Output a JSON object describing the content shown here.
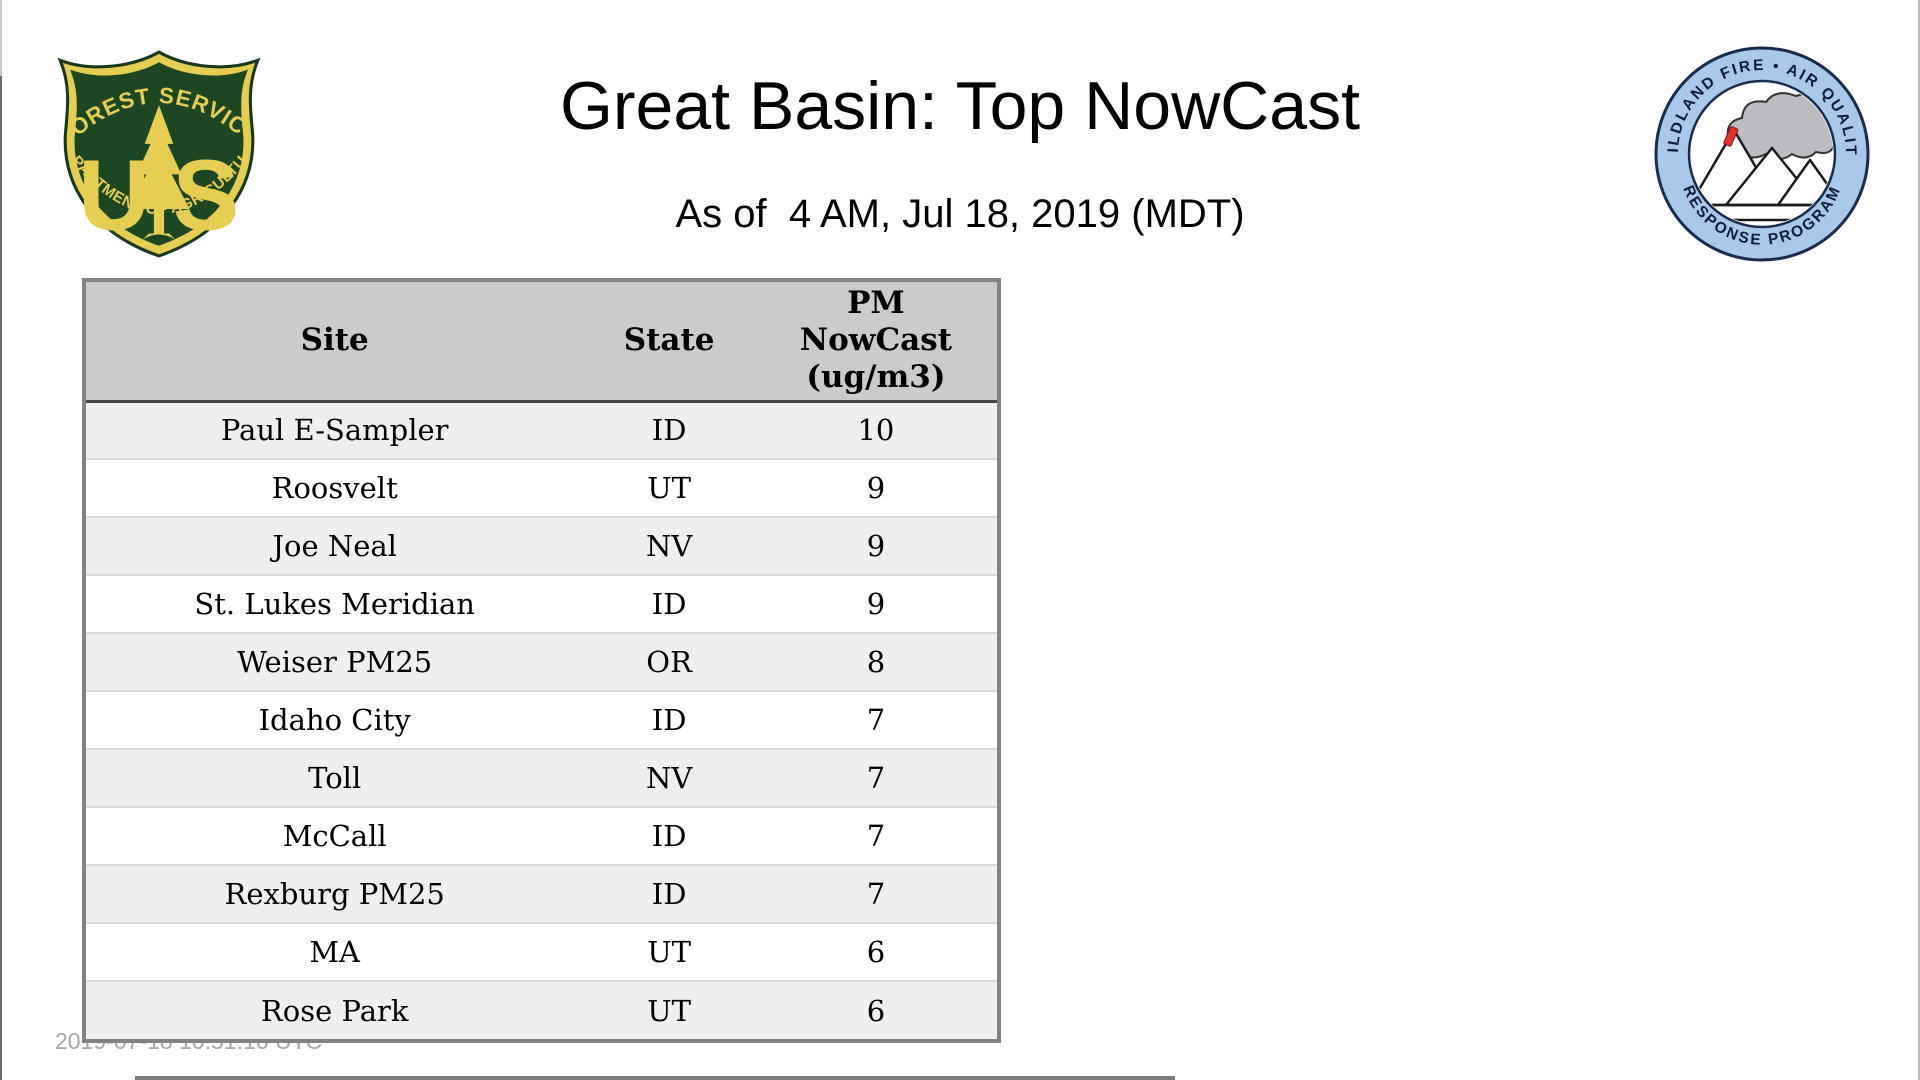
{
  "header": {
    "title": "Great Basin: Top NowCast",
    "subtitle": "As of  4 AM, Jul 18, 2019 (MDT)"
  },
  "logos": {
    "usfs": {
      "top_arc": "FOREST SERVICE",
      "letter_left": "U",
      "letter_right": "S",
      "bottom_arc": "DEPARTMENT OF AGRICULTURE",
      "shield_green": "#1d4723",
      "shield_gold": "#e6ce52"
    },
    "wfaqrp": {
      "top_arc": "WILDLAND FIRE • AIR QUALITY",
      "bottom_arc": "RESPONSE PROGRAM",
      "ring_blue": "#a9c9ea",
      "ring_outline": "#1b2b4e",
      "smoke_grey": "#bcbcc0",
      "flame_red": "#e8302c"
    }
  },
  "table": {
    "columns": [
      "Site",
      "State",
      "PM NowCast (ug/m3)"
    ],
    "header_bg": "#cbcbcb",
    "alt_row_bg": "#efefef",
    "rows": [
      {
        "site": "Paul E-Sampler",
        "state": "ID",
        "value": "10"
      },
      {
        "site": "Roosvelt",
        "state": "UT",
        "value": "9"
      },
      {
        "site": "Joe Neal",
        "state": "NV",
        "value": "9"
      },
      {
        "site": "St. Lukes Meridian",
        "state": "ID",
        "value": "9"
      },
      {
        "site": "Weiser PM25",
        "state": "OR",
        "value": "8"
      },
      {
        "site": "Idaho City",
        "state": "ID",
        "value": "7"
      },
      {
        "site": "Toll",
        "state": "NV",
        "value": "7"
      },
      {
        "site": "McCall",
        "state": "ID",
        "value": "7"
      },
      {
        "site": "Rexburg PM25",
        "state": "ID",
        "value": "7"
      },
      {
        "site": "MA",
        "state": "UT",
        "value": "6"
      },
      {
        "site": "Rose Park",
        "state": "UT",
        "value": "6"
      }
    ]
  },
  "footer": {
    "timestamp": "2019-07-18 10:51:16 UTC"
  },
  "chart_data": {
    "type": "table",
    "title": "Great Basin: Top NowCast",
    "subtitle": "As of 4 AM, Jul 18, 2019 (MDT)",
    "columns": [
      "Site",
      "State",
      "PM NowCast (ug/m3)"
    ],
    "rows": [
      [
        "Paul E-Sampler",
        "ID",
        10
      ],
      [
        "Roosvelt",
        "UT",
        9
      ],
      [
        "Joe Neal",
        "NV",
        9
      ],
      [
        "St. Lukes Meridian",
        "ID",
        9
      ],
      [
        "Weiser PM25",
        "OR",
        8
      ],
      [
        "Idaho City",
        "ID",
        7
      ],
      [
        "Toll",
        "NV",
        7
      ],
      [
        "McCall",
        "ID",
        7
      ],
      [
        "Rexburg PM25",
        "ID",
        7
      ],
      [
        "MA",
        "UT",
        6
      ],
      [
        "Rose Park",
        "UT",
        6
      ]
    ]
  }
}
